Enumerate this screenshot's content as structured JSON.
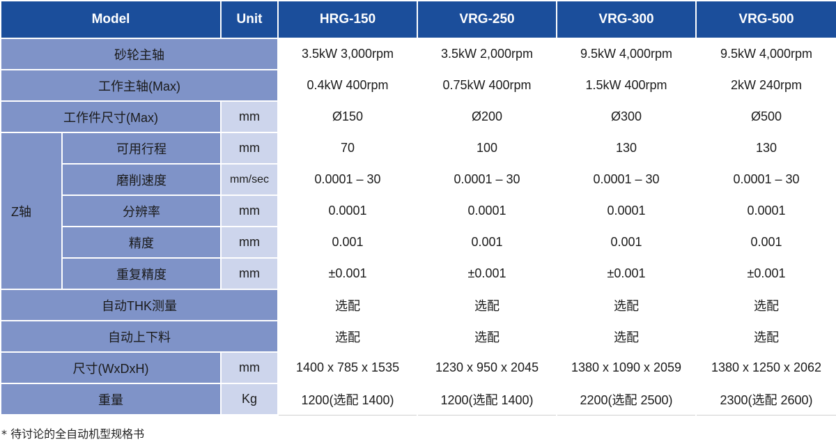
{
  "table": {
    "headers": [
      "Model",
      "Unit",
      "HRG-150",
      "VRG-250",
      "VRG-300",
      "VRG-500"
    ],
    "rows": [
      {
        "label": "砂轮主轴",
        "unit": "",
        "values": [
          "3.5kW 3,000rpm",
          "3.5kW 2,000rpm",
          "9.5kW 4,000rpm",
          "9.5kW 4,000rpm"
        ]
      },
      {
        "label": "工作主轴(Max)",
        "unit": "",
        "values": [
          "0.4kW 400rpm",
          "0.75kW 400rpm",
          "1.5kW 400rpm",
          "2kW 240rpm"
        ]
      },
      {
        "label": "工作件尺寸(Max)",
        "unit": "mm",
        "values": [
          "Ø150",
          "Ø200",
          "Ø300",
          "Ø500"
        ]
      },
      {
        "group": "Z轴",
        "label": "可用行程",
        "unit": "mm",
        "values": [
          "70",
          "100",
          "130",
          "130"
        ]
      },
      {
        "label": "磨削速度",
        "unit": "mm/sec",
        "values": [
          "0.0001 – 30",
          "0.0001 – 30",
          "0.0001 – 30",
          "0.0001 – 30"
        ]
      },
      {
        "label": "分辨率",
        "unit": "mm",
        "values": [
          "0.0001",
          "0.0001",
          "0.0001",
          "0.0001"
        ]
      },
      {
        "label": "精度",
        "unit": "mm",
        "values": [
          "0.001",
          "0.001",
          "0.001",
          "0.001"
        ]
      },
      {
        "label": "重复精度",
        "unit": "mm",
        "values": [
          "±0.001",
          "±0.001",
          "±0.001",
          "±0.001"
        ]
      },
      {
        "label": "自动THK测量",
        "unit": "",
        "values": [
          "选配",
          "选配",
          "选配",
          "选配"
        ]
      },
      {
        "label": "自动上下料",
        "unit": "",
        "values": [
          "选配",
          "选配",
          "选配",
          "选配"
        ]
      },
      {
        "label": "尺寸(WxDxH)",
        "unit": "mm",
        "values": [
          "1400 x 785 x 1535",
          "1230 x 950 x 2045",
          "1380 x 1090 x 2059",
          "1380 x 1250 x 2062"
        ]
      },
      {
        "label": "重量",
        "unit": "Kg",
        "values": [
          "1200(选配 1400)",
          "1200(选配 1400)",
          "2200(选配 2500)",
          "2300(选配 2600)"
        ]
      }
    ]
  },
  "footnote": "* 待讨论的全自动机型规格书",
  "colors": {
    "header": "#1b4e9b",
    "label": "#7f93c8",
    "unit": "#cdd5ec"
  }
}
